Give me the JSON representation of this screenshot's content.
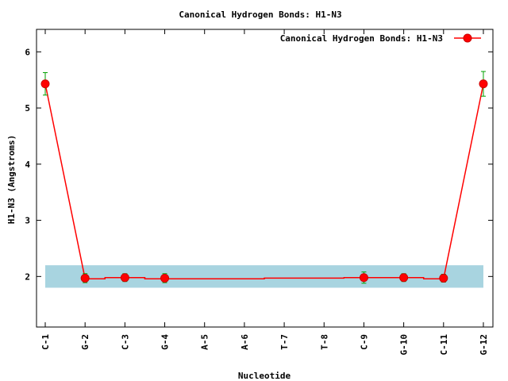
{
  "chart_data": {
    "type": "line",
    "title": "Canonical Hydrogen Bonds: H1-N3",
    "xlabel": "Nucleotide",
    "ylabel": "H1-N3 (Angstroms)",
    "ylim": [
      1.1,
      6.4
    ],
    "yticks": [
      2,
      3,
      4,
      5,
      6
    ],
    "grid": false,
    "legend_position": "top-right",
    "categories": [
      "C-1",
      "G-2",
      "C-3",
      "G-4",
      "A-5",
      "A-6",
      "T-7",
      "T-8",
      "C-9",
      "G-10",
      "C-11",
      "G-12"
    ],
    "reference_band": {
      "from": 1.8,
      "to": 2.2
    },
    "series": [
      {
        "name": "Canonical Hydrogen Bonds: H1-N3",
        "step_values": [
          5.43,
          1.96,
          1.98,
          1.96,
          1.96,
          1.96,
          1.97,
          1.97,
          1.98,
          1.98,
          1.96,
          5.43
        ],
        "points": [
          {
            "category": "C-1",
            "value": 5.43,
            "error": 0.2
          },
          {
            "category": "G-2",
            "value": 1.97,
            "error": 0.08
          },
          {
            "category": "C-3",
            "value": 1.98,
            "error": 0.07
          },
          {
            "category": "G-4",
            "value": 1.97,
            "error": 0.08
          },
          {
            "category": "C-9",
            "value": 1.98,
            "error": 0.1
          },
          {
            "category": "G-10",
            "value": 1.98,
            "error": 0.07
          },
          {
            "category": "C-11",
            "value": 1.97,
            "error": 0.07
          },
          {
            "category": "G-12",
            "value": 5.43,
            "error": 0.22
          }
        ]
      }
    ],
    "colors": {
      "line": "#ff0000",
      "marker": "#ff0000",
      "error_bar": "#00a000",
      "band": "#a8d4e0",
      "axis": "#000000"
    }
  }
}
